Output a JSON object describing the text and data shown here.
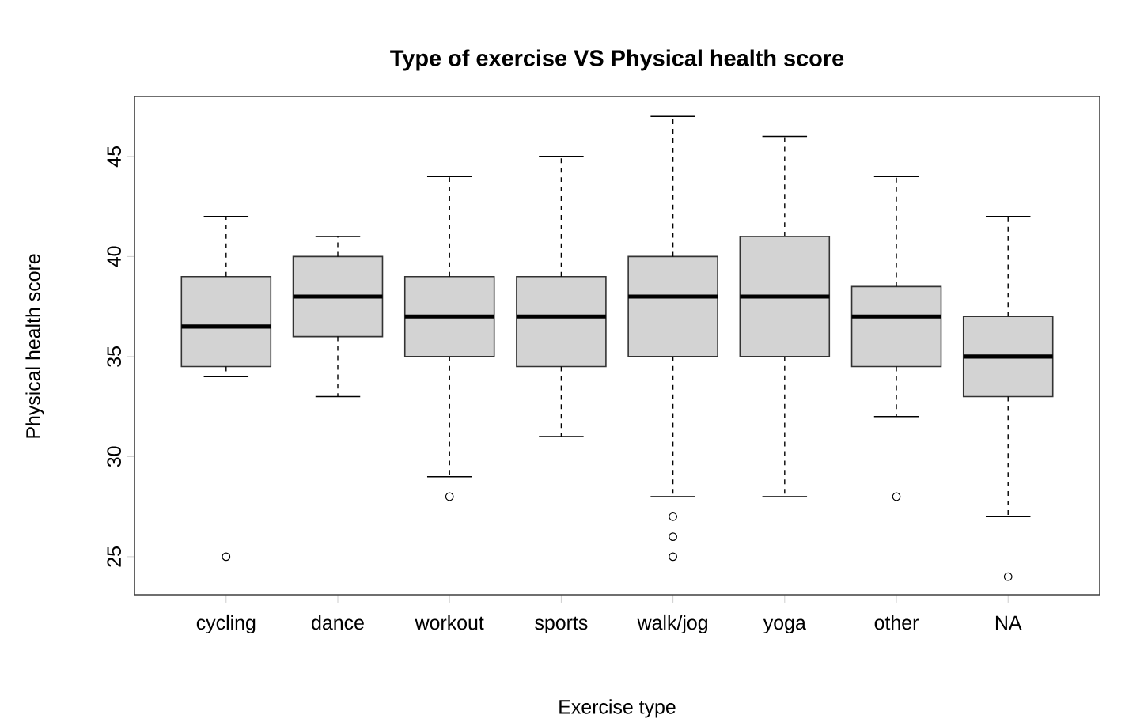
{
  "chart_data": {
    "type": "box",
    "title": "Type of exercise VS Physical health score",
    "xlabel": "Exercise type",
    "ylabel": "Physical health score",
    "categories": [
      "cycling",
      "dance",
      "workout",
      "sports",
      "walk/jog",
      "yoga",
      "other",
      "NA"
    ],
    "color": "#d3d3d3",
    "boxes": [
      {
        "low": 34,
        "q1": 34.5,
        "median": 36.5,
        "q3": 39,
        "high": 42,
        "outliers": [
          25
        ]
      },
      {
        "low": 33,
        "q1": 36,
        "median": 38,
        "q3": 40,
        "high": 41
      },
      {
        "low": 29,
        "q1": 35,
        "median": 37,
        "q3": 39,
        "high": 44,
        "outliers": [
          28
        ]
      },
      {
        "low": 31,
        "q1": 34.5,
        "median": 37,
        "q3": 39,
        "high": 45
      },
      {
        "low": 28,
        "q1": 35,
        "median": 38,
        "q3": 40,
        "high": 47,
        "outliers": [
          27,
          26,
          25
        ]
      },
      {
        "low": 28,
        "q1": 35,
        "median": 38,
        "q3": 41,
        "high": 46
      },
      {
        "low": 32,
        "q1": 34.5,
        "median": 37,
        "q3": 38.5,
        "high": 44,
        "outliers": [
          28
        ]
      },
      {
        "low": 27,
        "q1": 33,
        "median": 35,
        "q3": 37,
        "high": 42,
        "outliers": [
          24
        ]
      }
    ],
    "ylim": [
      23.1,
      48
    ],
    "yticks": [
      25,
      30,
      35,
      40,
      45
    ]
  }
}
